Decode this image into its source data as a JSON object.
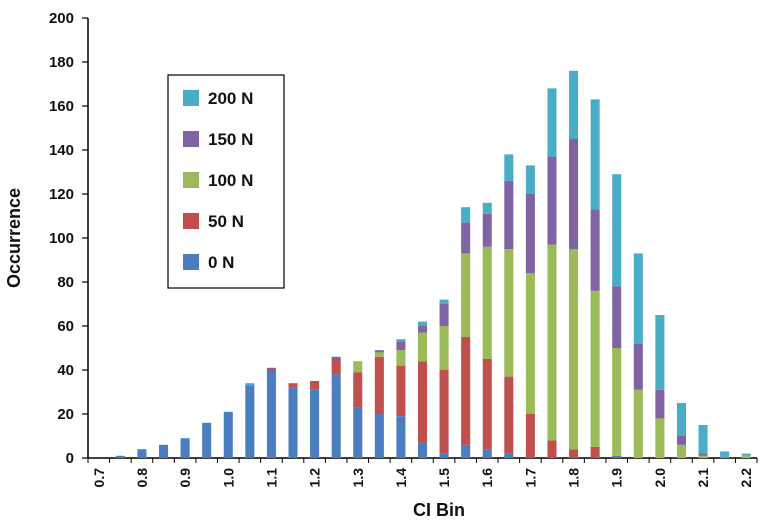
{
  "chart_data": {
    "type": "bar",
    "stacked": true,
    "xlabel": "CI Bin",
    "ylabel": "Occurrence",
    "ylim": [
      0,
      200
    ],
    "yticks": [
      0,
      20,
      40,
      60,
      80,
      100,
      120,
      140,
      160,
      180,
      200
    ],
    "grid": false,
    "legend_position": "upper-left",
    "categories": [
      "0.7",
      "0.75",
      "0.8",
      "0.85",
      "0.9",
      "0.95",
      "1.0",
      "1.05",
      "1.1",
      "1.15",
      "1.2",
      "1.25",
      "1.3",
      "1.35",
      "1.4",
      "1.45",
      "1.5",
      "1.55",
      "1.6",
      "1.65",
      "1.7",
      "1.75",
      "1.8",
      "1.85",
      "1.9",
      "1.95",
      "2.0",
      "2.05",
      "2.1",
      "2.15",
      "2.2"
    ],
    "tick_labels": [
      "0.7",
      "",
      "0.8",
      "",
      "0.9",
      "",
      "1.0",
      "",
      "1.1",
      "",
      "1.2",
      "",
      "1.3",
      "",
      "1.4",
      "",
      "1.5",
      "",
      "1.6",
      "",
      "1.7",
      "",
      "1.8",
      "",
      "1.9",
      "",
      "2.0",
      "",
      "2.1",
      "",
      "2.2"
    ],
    "series": [
      {
        "name": "0 N",
        "color": "#4a7ebf",
        "values": [
          0,
          1,
          4,
          6,
          9,
          16,
          21,
          33,
          40,
          32,
          31,
          38,
          23,
          20,
          19,
          7,
          2,
          6,
          4,
          2,
          0,
          0,
          0,
          0,
          1,
          0,
          0,
          0,
          0,
          0,
          0
        ]
      },
      {
        "name": "50 N",
        "color": "#c0504d",
        "values": [
          0,
          0,
          0,
          0,
          0,
          0,
          0,
          0,
          1,
          2,
          4,
          7,
          16,
          26,
          23,
          37,
          38,
          49,
          41,
          35,
          20,
          8,
          4,
          5,
          0,
          0,
          0,
          0,
          0,
          0,
          0
        ]
      },
      {
        "name": "100 N",
        "color": "#9bbb59",
        "values": [
          0,
          0,
          0,
          0,
          0,
          0,
          0,
          0,
          0,
          0,
          0,
          0,
          5,
          2,
          7,
          13,
          20,
          38,
          51,
          58,
          64,
          89,
          91,
          71,
          49,
          31,
          18,
          6,
          1,
          0,
          1
        ]
      },
      {
        "name": "150 N",
        "color": "#8064a2",
        "values": [
          0,
          0,
          0,
          0,
          0,
          0,
          0,
          0,
          0,
          0,
          0,
          1,
          0,
          1,
          4,
          3,
          10,
          14,
          15,
          31,
          36,
          40,
          50,
          37,
          28,
          21,
          13,
          4,
          1,
          0,
          0
        ]
      },
      {
        "name": "200 N",
        "color": "#4bacc6",
        "values": [
          0,
          0,
          0,
          0,
          0,
          0,
          0,
          1,
          0,
          0,
          0,
          0,
          0,
          0,
          1,
          2,
          2,
          7,
          5,
          12,
          13,
          31,
          31,
          50,
          51,
          41,
          34,
          15,
          13,
          3,
          1
        ]
      }
    ],
    "legend_order": [
      "200 N",
      "150 N",
      "100 N",
      "50 N",
      "0 N"
    ]
  }
}
